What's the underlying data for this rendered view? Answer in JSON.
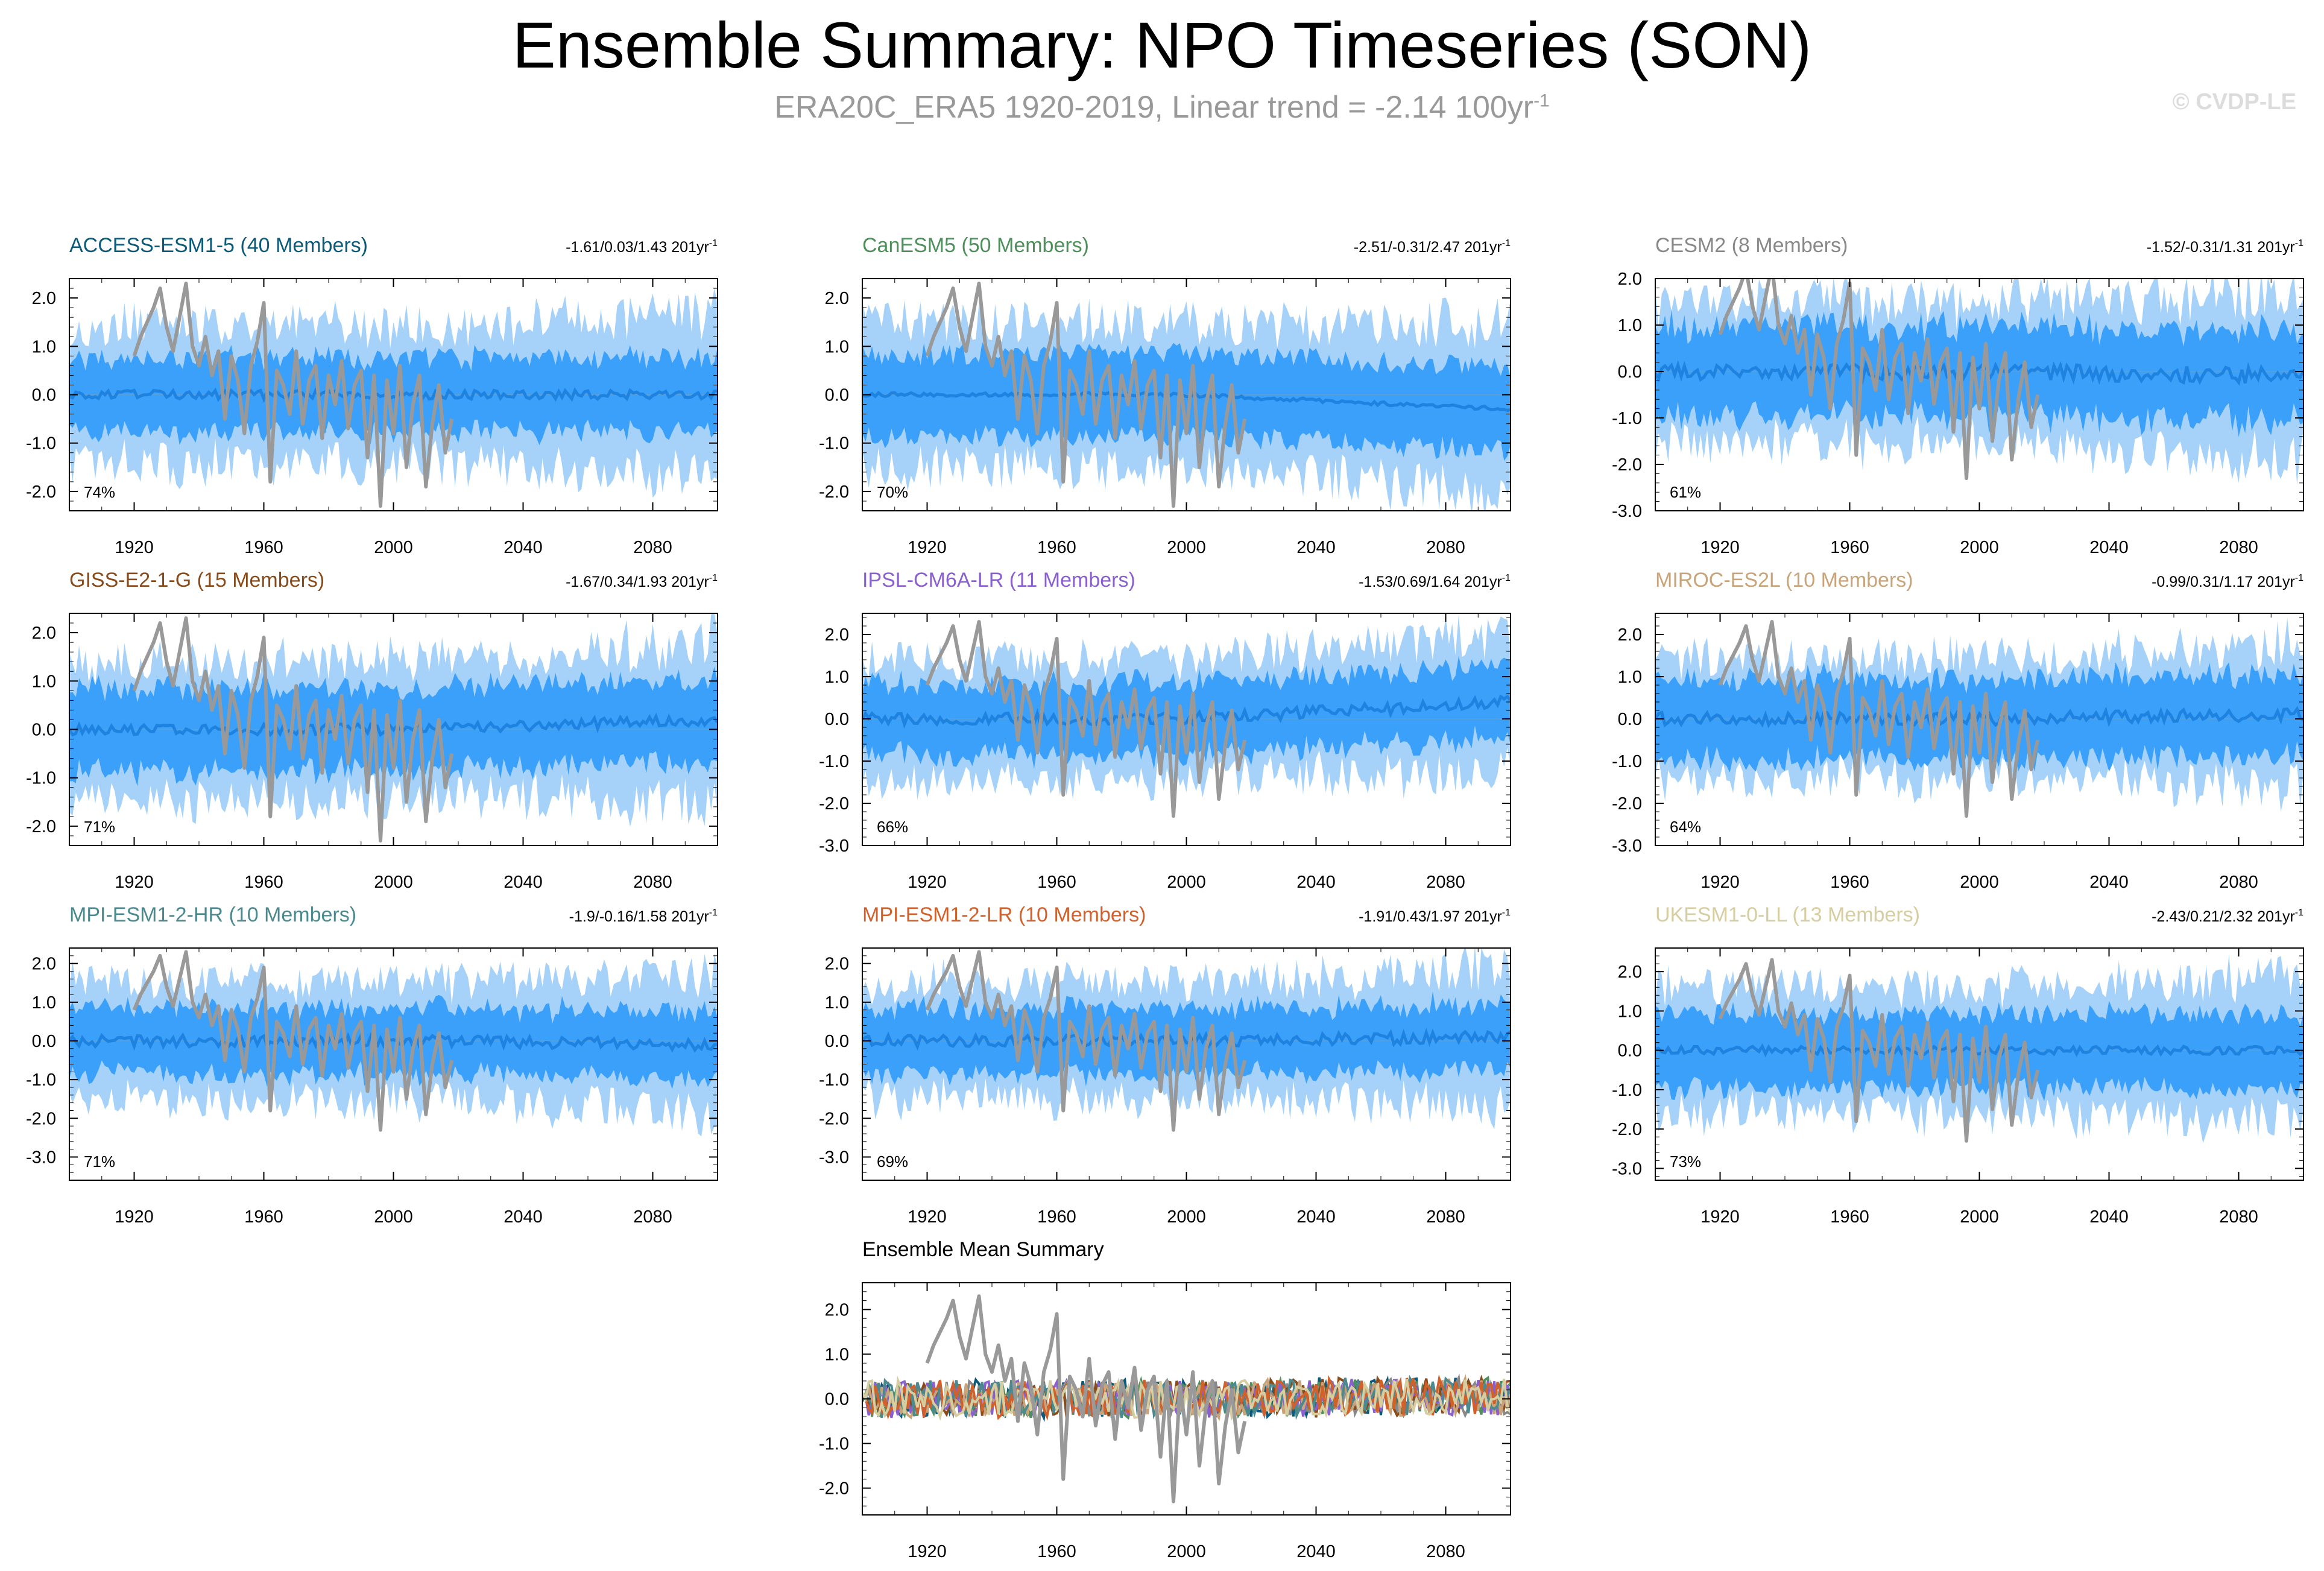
{
  "header": {
    "title": "Ensemble Summary: NPO Timeseries (SON)",
    "subtitle_prefix": "ERA20C_ERA5 1920-2019, Linear trend = -2.14 100yr",
    "subtitle_exp": "-1",
    "copyright": "© CVDP-LE"
  },
  "colors": {
    "outer_band": "#a6d2fa",
    "inner_band": "#3aa0fa",
    "ens_mean": "#1e82e0",
    "observed": "#999999"
  },
  "chart_data": [
    {
      "type": "area",
      "title": "ACCESS-ESM1-5 (40 Members)",
      "title_color": "#0b5a7a",
      "trend": "-1.61/0.03/1.43 201yr",
      "trend_exp": "-1",
      "pct": "74%",
      "xlim": [
        1900,
        2100
      ],
      "xticks": [
        "1920",
        "1960",
        "2000",
        "2040",
        "2080"
      ],
      "ylim": [
        -2.4,
        2.4
      ],
      "yticks": [
        "2.0",
        "1.0",
        "0.0",
        "-1.0",
        "-2.0"
      ],
      "outer": 1.5,
      "inner": 0.8,
      "noise": 0.18,
      "drift": 0.0
    },
    {
      "type": "area",
      "title": "CanESM5 (50 Members)",
      "title_color": "#4e8f5b",
      "trend": "-2.51/-0.31/2.47 201yr",
      "trend_exp": "-1",
      "pct": "70%",
      "xlim": [
        1900,
        2100
      ],
      "xticks": [
        "1920",
        "1960",
        "2000",
        "2040",
        "2080"
      ],
      "ylim": [
        -2.4,
        2.4
      ],
      "yticks": [
        "2.0",
        "1.0",
        "0.0",
        "-1.0",
        "-2.0"
      ],
      "outer": 1.6,
      "inner": 0.9,
      "noise": 0.08,
      "drift": -0.3
    },
    {
      "type": "area",
      "title": "CESM2 (8 Members)",
      "title_color": "#888888",
      "trend": "-1.52/-0.31/1.31 201yr",
      "trend_exp": "-1",
      "pct": "61%",
      "xlim": [
        1900,
        2100
      ],
      "xticks": [
        "1920",
        "1960",
        "2000",
        "2040",
        "2080"
      ],
      "ylim": [
        -3.0,
        2.0
      ],
      "yticks": [
        "2.0",
        "1.0",
        "0.0",
        "-1.0",
        "-2.0",
        "-3.0"
      ],
      "outer": 1.6,
      "inner": 1.0,
      "noise": 0.35,
      "drift": -0.1
    },
    {
      "type": "area",
      "title": "GISS-E2-1-G (15 Members)",
      "title_color": "#8a4b1a",
      "trend": "-1.67/0.34/1.93 201yr",
      "trend_exp": "-1",
      "pct": "71%",
      "xlim": [
        1900,
        2100
      ],
      "xticks": [
        "1920",
        "1960",
        "2000",
        "2040",
        "2080"
      ],
      "ylim": [
        -2.4,
        2.4
      ],
      "yticks": [
        "2.0",
        "1.0",
        "0.0",
        "-1.0",
        "-2.0"
      ],
      "outer": 1.5,
      "inner": 0.9,
      "noise": 0.22,
      "drift": 0.2
    },
    {
      "type": "area",
      "title": "IPSL-CM6A-LR (11 Members)",
      "title_color": "#8a5fcf",
      "trend": "-1.53/0.69/1.64 201yr",
      "trend_exp": "-1",
      "pct": "66%",
      "xlim": [
        1900,
        2100
      ],
      "xticks": [
        "1920",
        "1960",
        "2000",
        "2040",
        "2080"
      ],
      "ylim": [
        -3.0,
        2.5
      ],
      "yticks": [
        "2.0",
        "1.0",
        "0.0",
        "-1.0",
        "-2.0",
        "-3.0"
      ],
      "outer": 1.5,
      "inner": 0.9,
      "noise": 0.28,
      "drift": 0.4
    },
    {
      "type": "area",
      "title": "MIROC-ES2L (10 Members)",
      "title_color": "#c9a47a",
      "trend": "-0.99/0.31/1.17 201yr",
      "trend_exp": "-1",
      "pct": "64%",
      "xlim": [
        1900,
        2100
      ],
      "xticks": [
        "1920",
        "1960",
        "2000",
        "2040",
        "2080"
      ],
      "ylim": [
        -3.0,
        2.5
      ],
      "yticks": [
        "2.0",
        "1.0",
        "0.0",
        "-1.0",
        "-2.0",
        "-3.0"
      ],
      "outer": 1.5,
      "inner": 1.0,
      "noise": 0.3,
      "drift": 0.1
    },
    {
      "type": "area",
      "title": "MPI-ESM1-2-HR (10 Members)",
      "title_color": "#4a8a8f",
      "trend": "-1.9/-0.16/1.58 201yr",
      "trend_exp": "-1",
      "pct": "71%",
      "xlim": [
        1900,
        2100
      ],
      "xticks": [
        "1920",
        "1960",
        "2000",
        "2040",
        "2080"
      ],
      "ylim": [
        -3.6,
        2.4
      ],
      "yticks": [
        "2.0",
        "1.0",
        "0.0",
        "-1.0",
        "-2.0",
        "-3.0"
      ],
      "outer": 1.6,
      "inner": 0.9,
      "noise": 0.3,
      "drift": -0.1
    },
    {
      "type": "area",
      "title": "MPI-ESM1-2-LR (10 Members)",
      "title_color": "#d2602b",
      "trend": "-1.91/0.43/1.97 201yr",
      "trend_exp": "-1",
      "pct": "69%",
      "xlim": [
        1900,
        2100
      ],
      "xticks": [
        "1920",
        "1960",
        "2000",
        "2040",
        "2080"
      ],
      "ylim": [
        -3.6,
        2.4
      ],
      "yticks": [
        "2.0",
        "1.0",
        "0.0",
        "-1.0",
        "-2.0",
        "-3.0"
      ],
      "outer": 1.6,
      "inner": 0.9,
      "noise": 0.3,
      "drift": 0.1
    },
    {
      "type": "area",
      "title": "UKESM1-0-LL (13 Members)",
      "title_color": "#d6cda0",
      "trend": "-2.43/0.21/2.32 201yr",
      "trend_exp": "-1",
      "pct": "73%",
      "xlim": [
        1900,
        2100
      ],
      "xticks": [
        "1920",
        "1960",
        "2000",
        "2040",
        "2080"
      ],
      "ylim": [
        -3.3,
        2.6
      ],
      "yticks": [
        "2.0",
        "1.0",
        "0.0",
        "-1.0",
        "-2.0",
        "-3.0"
      ],
      "outer": 1.7,
      "inner": 1.0,
      "noise": 0.2,
      "drift": 0.0
    },
    {
      "type": "line",
      "title": "Ensemble Mean Summary",
      "title_color": "#000000",
      "xlim": [
        1900,
        2100
      ],
      "xticks": [
        "1920",
        "1960",
        "2000",
        "2040",
        "2080"
      ],
      "ylim": [
        -2.6,
        2.6
      ],
      "yticks": [
        "2.0",
        "1.0",
        "0.0",
        "-1.0",
        "-2.0"
      ],
      "series": [
        {
          "name": "ACCESS-ESM1-5",
          "color": "#0b5a7a"
        },
        {
          "name": "CanESM5",
          "color": "#4e8f5b"
        },
        {
          "name": "CESM2",
          "color": "#888888"
        },
        {
          "name": "GISS-E2-1-G",
          "color": "#8a4b1a"
        },
        {
          "name": "IPSL-CM6A-LR",
          "color": "#8a5fcf"
        },
        {
          "name": "MIROC-ES2L",
          "color": "#c9a47a"
        },
        {
          "name": "MPI-ESM1-2-HR",
          "color": "#4a8a8f"
        },
        {
          "name": "MPI-ESM1-2-LR",
          "color": "#d2602b"
        },
        {
          "name": "UKESM1-0-LL",
          "color": "#d6cda0"
        }
      ]
    }
  ],
  "observed": {
    "name": "ERA20C_ERA5",
    "years": [
      1920,
      1922,
      1924,
      1926,
      1928,
      1930,
      1932,
      1934,
      1936,
      1938,
      1940,
      1942,
      1944,
      1946,
      1948,
      1950,
      1952,
      1954,
      1956,
      1958,
      1960,
      1962,
      1964,
      1966,
      1968,
      1970,
      1972,
      1974,
      1976,
      1978,
      1980,
      1982,
      1984,
      1986,
      1988,
      1990,
      1992,
      1994,
      1996,
      1998,
      2000,
      2002,
      2004,
      2006,
      2008,
      2010,
      2012,
      2014,
      2016,
      2018
    ],
    "values": [
      0.8,
      1.2,
      1.5,
      1.8,
      2.2,
      1.4,
      0.9,
      1.6,
      2.3,
      1.0,
      0.6,
      1.2,
      0.4,
      0.9,
      -0.5,
      0.8,
      0.3,
      -0.8,
      0.6,
      1.1,
      1.9,
      -1.8,
      0.5,
      0.2,
      -0.4,
      0.9,
      -0.6,
      0.3,
      0.6,
      -0.9,
      0.4,
      -0.2,
      0.7,
      -0.7,
      0.2,
      0.5,
      -1.3,
      0.4,
      -2.3,
      0.3,
      -0.8,
      0.6,
      -1.5,
      -0.2,
      0.4,
      -1.9,
      -0.6,
      0.2,
      -1.2,
      -0.5
    ]
  }
}
